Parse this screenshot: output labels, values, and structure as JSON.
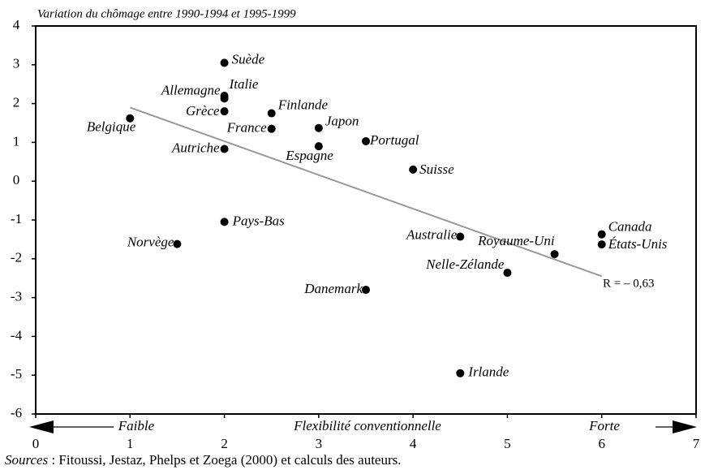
{
  "chart_data": {
    "type": "scatter",
    "title": "Variation du chômage entre 1990-1994 et 1995-1999",
    "xlabel": "Flexibilité conventionnelle",
    "xlabel_left": "Faible",
    "xlabel_right": "Forte",
    "source_label": "Sources",
    "source_text": " : Fitoussi, Jestaz, Phelps et Zoega (2000) et calculs des auteurs.",
    "annotation": "R = – 0,63",
    "xlim": [
      0,
      7
    ],
    "ylim": [
      -6,
      4
    ],
    "xticks": [
      0,
      1,
      2,
      3,
      4,
      5,
      6,
      7
    ],
    "yticks": [
      -6,
      -5,
      -4,
      -3,
      -2,
      -1,
      0,
      1,
      2,
      3,
      4
    ],
    "color": "#000000",
    "trendline": {
      "color": "#999999",
      "x": [
        1,
        6
      ],
      "y": [
        1.9,
        -2.45
      ]
    },
    "points": {
      "labels": [
        "Suède",
        "Italie",
        "Allemagne",
        "Grèce",
        "Belgique",
        "Finlande",
        "France",
        "Japon",
        "Espagne",
        "Portugal",
        "Autriche",
        "Suisse",
        "Pays-Bas",
        "Norvège",
        "Australie",
        "Royaume-Uni",
        "Canada",
        "États-Unis",
        "Nelle-Zélande",
        "Danemark",
        "Irlande"
      ],
      "x": [
        2,
        2,
        2,
        2,
        1,
        2.5,
        2.5,
        3,
        3,
        3.5,
        2,
        4,
        2,
        1.5,
        4.5,
        5.5,
        6,
        6,
        5,
        3.5,
        4.5
      ],
      "y": [
        3.05,
        2.2,
        2.13,
        1.8,
        1.62,
        1.75,
        1.35,
        1.37,
        0.9,
        1.03,
        0.83,
        0.3,
        -1.05,
        -1.62,
        -1.43,
        -1.88,
        -1.37,
        -1.63,
        -2.36,
        -2.8,
        -4.95
      ]
    }
  }
}
